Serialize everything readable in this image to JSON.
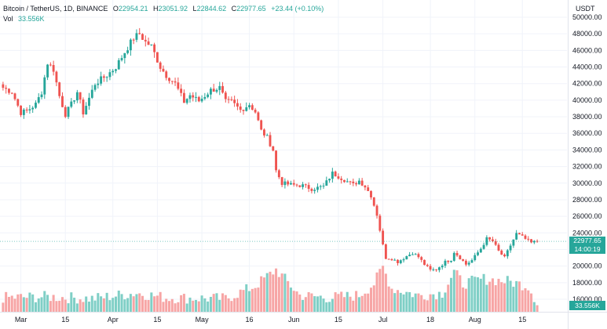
{
  "legend": {
    "symbol": "Bitcoin / TetherUS, 1D, BINANCE",
    "open_label": "O",
    "open": "22954.21",
    "high_label": "H",
    "high": "23051.92",
    "low_label": "L",
    "low": "22844.62",
    "close_label": "C",
    "close": "22977.65",
    "change": "+23.44 (+0.10%)",
    "vol_label": "Vol",
    "vol_value": "33.556K"
  },
  "price_scale": {
    "currency": "USDT",
    "last_price": "22977.65",
    "countdown": "14:00:19",
    "volume_value": "33.556K"
  },
  "colors": {
    "up": "#26a69a",
    "down": "#ef5350",
    "up_vol": "#7fcfc6",
    "down_vol": "#f7a5a5",
    "grid": "#f0f3fa"
  },
  "chart_data": {
    "type": "candlestick",
    "y_ticks": [
      "50000.00",
      "48000.00",
      "46000.00",
      "44000.00",
      "42000.00",
      "40000.00",
      "38000.00",
      "36000.00",
      "34000.00",
      "32000.00",
      "30000.00",
      "28000.00",
      "26000.00",
      "24000.00",
      "22000.00",
      "20000.00",
      "18000.00",
      "16000.00"
    ],
    "ylim": [
      15000,
      51000
    ],
    "x_ticks": [
      "Mar",
      "15",
      "Apr",
      "15",
      "May",
      "16",
      "Jun",
      "15",
      "Jul",
      "18",
      "Aug",
      "15"
    ],
    "anchors": [
      [
        0,
        41500
      ],
      [
        3,
        41000
      ],
      [
        6,
        38500
      ],
      [
        8,
        38700
      ],
      [
        11,
        39500
      ],
      [
        13,
        41000
      ],
      [
        15,
        44500
      ],
      [
        17,
        43700
      ],
      [
        19,
        40500
      ],
      [
        21,
        38300
      ],
      [
        23,
        39500
      ],
      [
        25,
        41000
      ],
      [
        27,
        38500
      ],
      [
        31,
        42000
      ],
      [
        35,
        43000
      ],
      [
        38,
        44000
      ],
      [
        41,
        45800
      ],
      [
        44,
        47500
      ],
      [
        46,
        48000
      ],
      [
        48,
        47000
      ],
      [
        50,
        46500
      ],
      [
        53,
        44000
      ],
      [
        55,
        43000
      ],
      [
        58,
        42000
      ],
      [
        61,
        39800
      ],
      [
        63,
        40600
      ],
      [
        66,
        39900
      ],
      [
        70,
        41200
      ],
      [
        73,
        41500
      ],
      [
        75,
        39800
      ],
      [
        77,
        39800
      ],
      [
        80,
        38800
      ],
      [
        83,
        39500
      ],
      [
        85,
        38600
      ],
      [
        87,
        36300
      ],
      [
        89,
        35500
      ],
      [
        91,
        34000
      ],
      [
        92,
        31500
      ],
      [
        94,
        30000
      ],
      [
        97,
        29800
      ],
      [
        101,
        29700
      ],
      [
        104,
        29300
      ],
      [
        108,
        29600
      ],
      [
        111,
        31200
      ],
      [
        114,
        30600
      ],
      [
        118,
        29800
      ],
      [
        120,
        30300
      ],
      [
        122,
        29600
      ],
      [
        124,
        28500
      ],
      [
        126,
        26200
      ],
      [
        128,
        22500
      ],
      [
        129,
        21000
      ],
      [
        131,
        20900
      ],
      [
        133,
        20500
      ],
      [
        136,
        21200
      ],
      [
        138,
        21600
      ],
      [
        140,
        21100
      ],
      [
        142,
        20200
      ],
      [
        144,
        19500
      ],
      [
        146,
        19600
      ],
      [
        149,
        20500
      ],
      [
        151,
        20800
      ],
      [
        152,
        21700
      ],
      [
        154,
        21000
      ],
      [
        156,
        20200
      ],
      [
        158,
        20700
      ],
      [
        161,
        22100
      ],
      [
        163,
        23300
      ],
      [
        165,
        23000
      ],
      [
        167,
        21800
      ],
      [
        169,
        21000
      ],
      [
        171,
        22500
      ],
      [
        173,
        23900
      ],
      [
        175,
        23500
      ],
      [
        178,
        22800
      ],
      [
        180,
        22977.65
      ]
    ],
    "volume_anchors": [
      [
        0,
        0.3
      ],
      [
        15,
        0.32
      ],
      [
        30,
        0.28
      ],
      [
        45,
        0.4
      ],
      [
        55,
        0.3
      ],
      [
        75,
        0.28
      ],
      [
        85,
        0.55
      ],
      [
        92,
        0.9
      ],
      [
        100,
        0.35
      ],
      [
        110,
        0.3
      ],
      [
        120,
        0.35
      ],
      [
        125,
        0.6
      ],
      [
        128,
        0.95
      ],
      [
        131,
        0.5
      ],
      [
        140,
        0.35
      ],
      [
        148,
        0.4
      ],
      [
        152,
        0.85
      ],
      [
        155,
        0.6
      ],
      [
        162,
        0.7
      ],
      [
        170,
        0.65
      ],
      [
        177,
        0.55
      ],
      [
        180,
        0.2
      ]
    ],
    "volume_range": [
      14800,
      19600
    ],
    "grid": true
  }
}
